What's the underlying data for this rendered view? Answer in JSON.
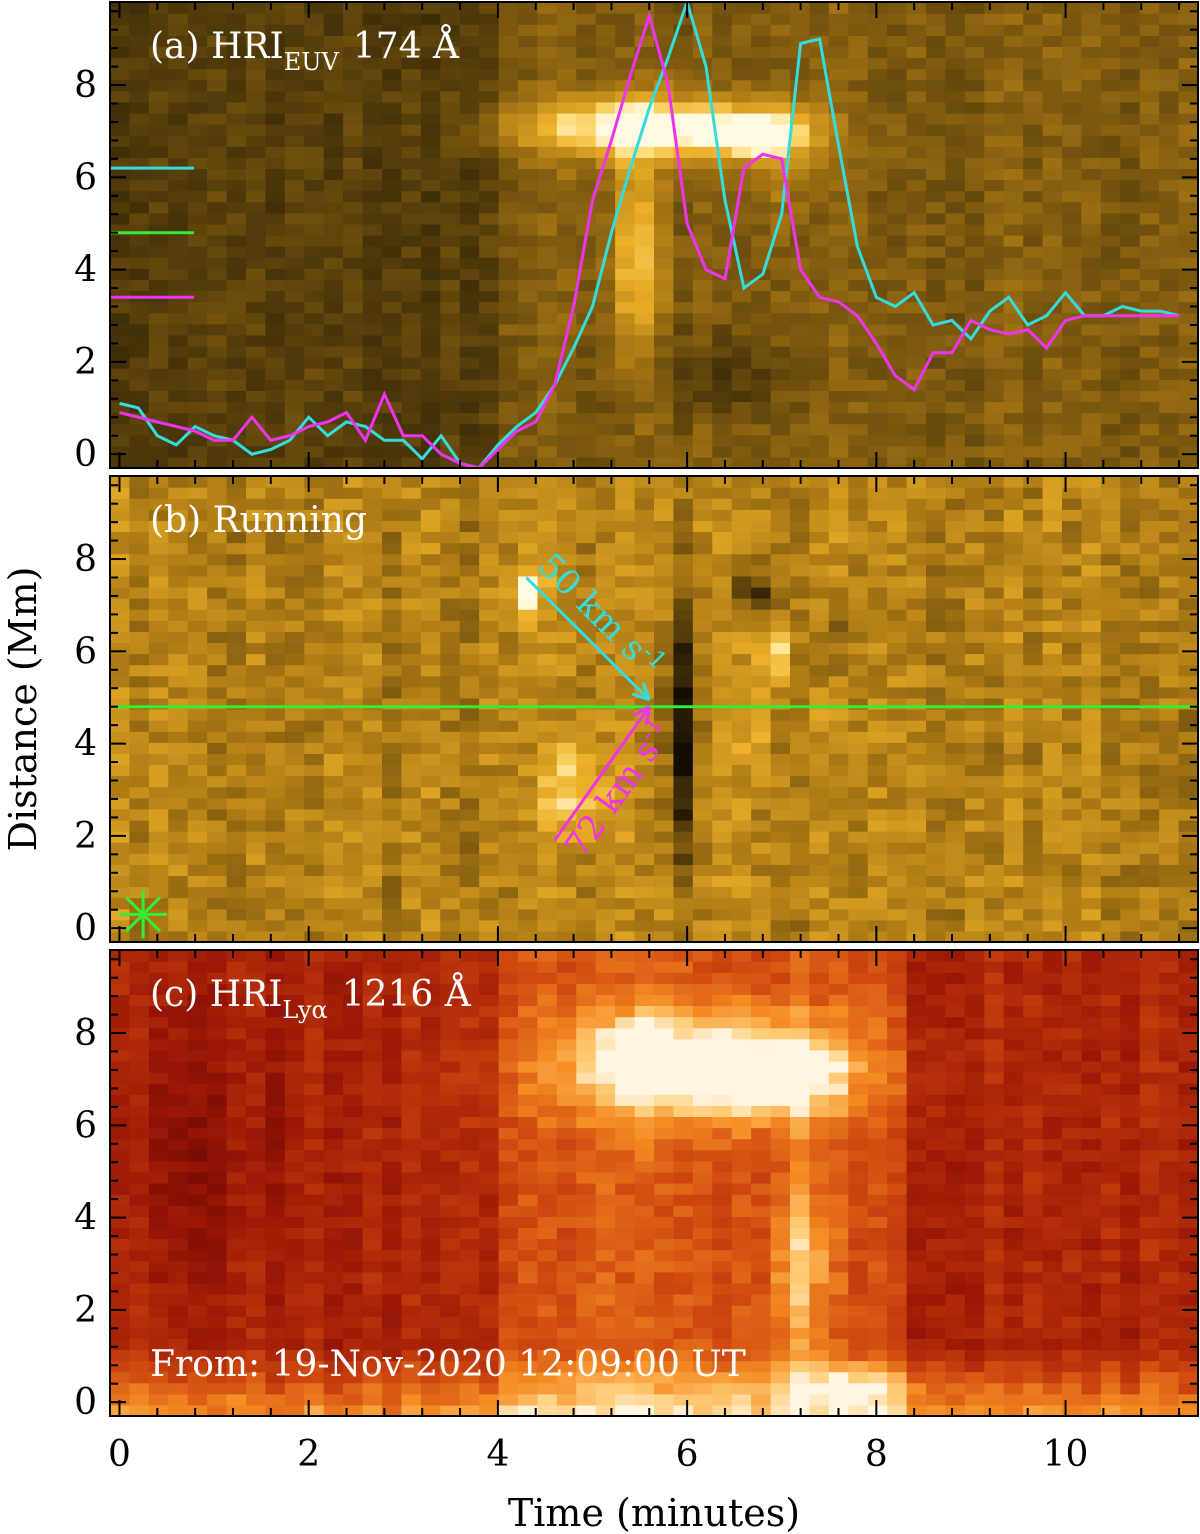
{
  "chart_data": [
    {
      "type": "heatmap",
      "panel": "(a)",
      "label_prefix": "(a) HRI",
      "label_sub": "EUV",
      "label_suffix": "174 Å",
      "colormap": "sdo-aia-171",
      "overlay_lines": [
        {
          "color": "#33dddd",
          "x": [
            0.0,
            0.2,
            0.4,
            0.6,
            0.8,
            1.0,
            1.2,
            1.4,
            1.6,
            1.8,
            2.0,
            2.2,
            2.4,
            2.6,
            2.8,
            3.0,
            3.2,
            3.4,
            3.6,
            3.8,
            4.0,
            4.2,
            4.4,
            4.6,
            4.8,
            5.0,
            5.2,
            5.4,
            5.6,
            5.8,
            6.0,
            6.2,
            6.4,
            6.6,
            6.8,
            7.0,
            7.2,
            7.4,
            7.6,
            7.8,
            8.0,
            8.2,
            8.4,
            8.6,
            8.8,
            9.0,
            9.2,
            9.4,
            9.6,
            9.8,
            10.0,
            10.2,
            10.4,
            10.6,
            10.8,
            11.0,
            11.2
          ],
          "y": [
            1.1,
            1.0,
            0.4,
            0.2,
            0.6,
            0.4,
            0.3,
            0.0,
            0.1,
            0.3,
            0.8,
            0.4,
            0.7,
            0.6,
            0.3,
            0.3,
            -0.1,
            0.4,
            -0.2,
            -0.3,
            0.2,
            0.6,
            0.9,
            1.5,
            2.3,
            3.2,
            4.8,
            6.2,
            7.5,
            8.6,
            9.8,
            8.4,
            5.5,
            3.6,
            3.9,
            5.2,
            8.9,
            9.0,
            6.7,
            4.5,
            3.4,
            3.2,
            3.5,
            2.8,
            2.9,
            2.5,
            3.1,
            3.4,
            2.8,
            3.0,
            3.5,
            3.0,
            3.0,
            3.2,
            3.1,
            3.1,
            3.0
          ]
        },
        {
          "color": "#ee33ee",
          "x": [
            0.0,
            0.2,
            0.4,
            0.6,
            0.8,
            1.0,
            1.2,
            1.4,
            1.6,
            1.8,
            2.0,
            2.2,
            2.4,
            2.6,
            2.8,
            3.0,
            3.2,
            3.4,
            3.6,
            3.8,
            4.0,
            4.2,
            4.4,
            4.6,
            4.8,
            5.0,
            5.2,
            5.4,
            5.6,
            5.8,
            6.0,
            6.2,
            6.4,
            6.6,
            6.8,
            7.0,
            7.2,
            7.4,
            7.6,
            7.8,
            8.0,
            8.2,
            8.4,
            8.6,
            8.8,
            9.0,
            9.2,
            9.4,
            9.6,
            9.8,
            10.0,
            10.2,
            10.4,
            10.6,
            10.8,
            11.0,
            11.2
          ],
          "y": [
            0.9,
            0.8,
            0.7,
            0.6,
            0.5,
            0.3,
            0.3,
            0.8,
            0.3,
            0.4,
            0.6,
            0.7,
            0.9,
            0.3,
            1.3,
            0.4,
            0.4,
            0.0,
            -0.2,
            -0.3,
            0.1,
            0.5,
            0.7,
            1.5,
            3.2,
            5.5,
            6.8,
            8.2,
            9.5,
            8.0,
            5.0,
            4.0,
            3.8,
            6.2,
            6.5,
            6.4,
            4.0,
            3.4,
            3.3,
            3.0,
            2.4,
            1.7,
            1.4,
            2.2,
            2.2,
            2.9,
            2.7,
            2.6,
            2.7,
            2.3,
            2.9,
            3.0,
            3.0,
            3.0,
            3.0,
            3.0,
            3.0
          ]
        }
      ],
      "side_markers": [
        {
          "color": "#33dddd",
          "y": 6.2
        },
        {
          "color": "#33ee33",
          "y": 4.8
        },
        {
          "color": "#ee33ee",
          "y": 3.4
        }
      ]
    },
    {
      "type": "heatmap",
      "panel": "(b)",
      "label": "(b) Running",
      "colormap": "sdo-aia-171",
      "reference_line": {
        "y": 4.8,
        "color": "#33ee33"
      },
      "speed_arrows": [
        {
          "label": "50 km s",
          "label_sup": "-1",
          "color": "#33dddd",
          "from": [
            4.3,
            7.6
          ],
          "to": [
            5.6,
            4.95
          ]
        },
        {
          "label": "72 km s",
          "label_sup": "-1",
          "color": "#ee33ee",
          "from": [
            4.6,
            1.9
          ],
          "to": [
            5.6,
            4.8
          ]
        }
      ],
      "star_marker": {
        "x": 0.25,
        "y": 0.3,
        "color": "#33ee33"
      }
    },
    {
      "type": "heatmap",
      "panel": "(c)",
      "label_prefix": "(c) HRI",
      "label_sub": "Lyα",
      "label_suffix": "1216 Å",
      "colormap": "red-temperature",
      "annotation": "From: 19-Nov-2020 12:09:00 UT"
    }
  ],
  "axes": {
    "x_label": "Time (minutes)",
    "y_label": "Distance (Mm)",
    "x_range": [
      -0.1,
      11.4
    ],
    "y_range": [
      -0.3,
      9.8
    ],
    "x_ticks": [
      0,
      2,
      4,
      6,
      8,
      10
    ],
    "y_ticks": [
      0,
      2,
      4,
      6,
      8
    ]
  }
}
